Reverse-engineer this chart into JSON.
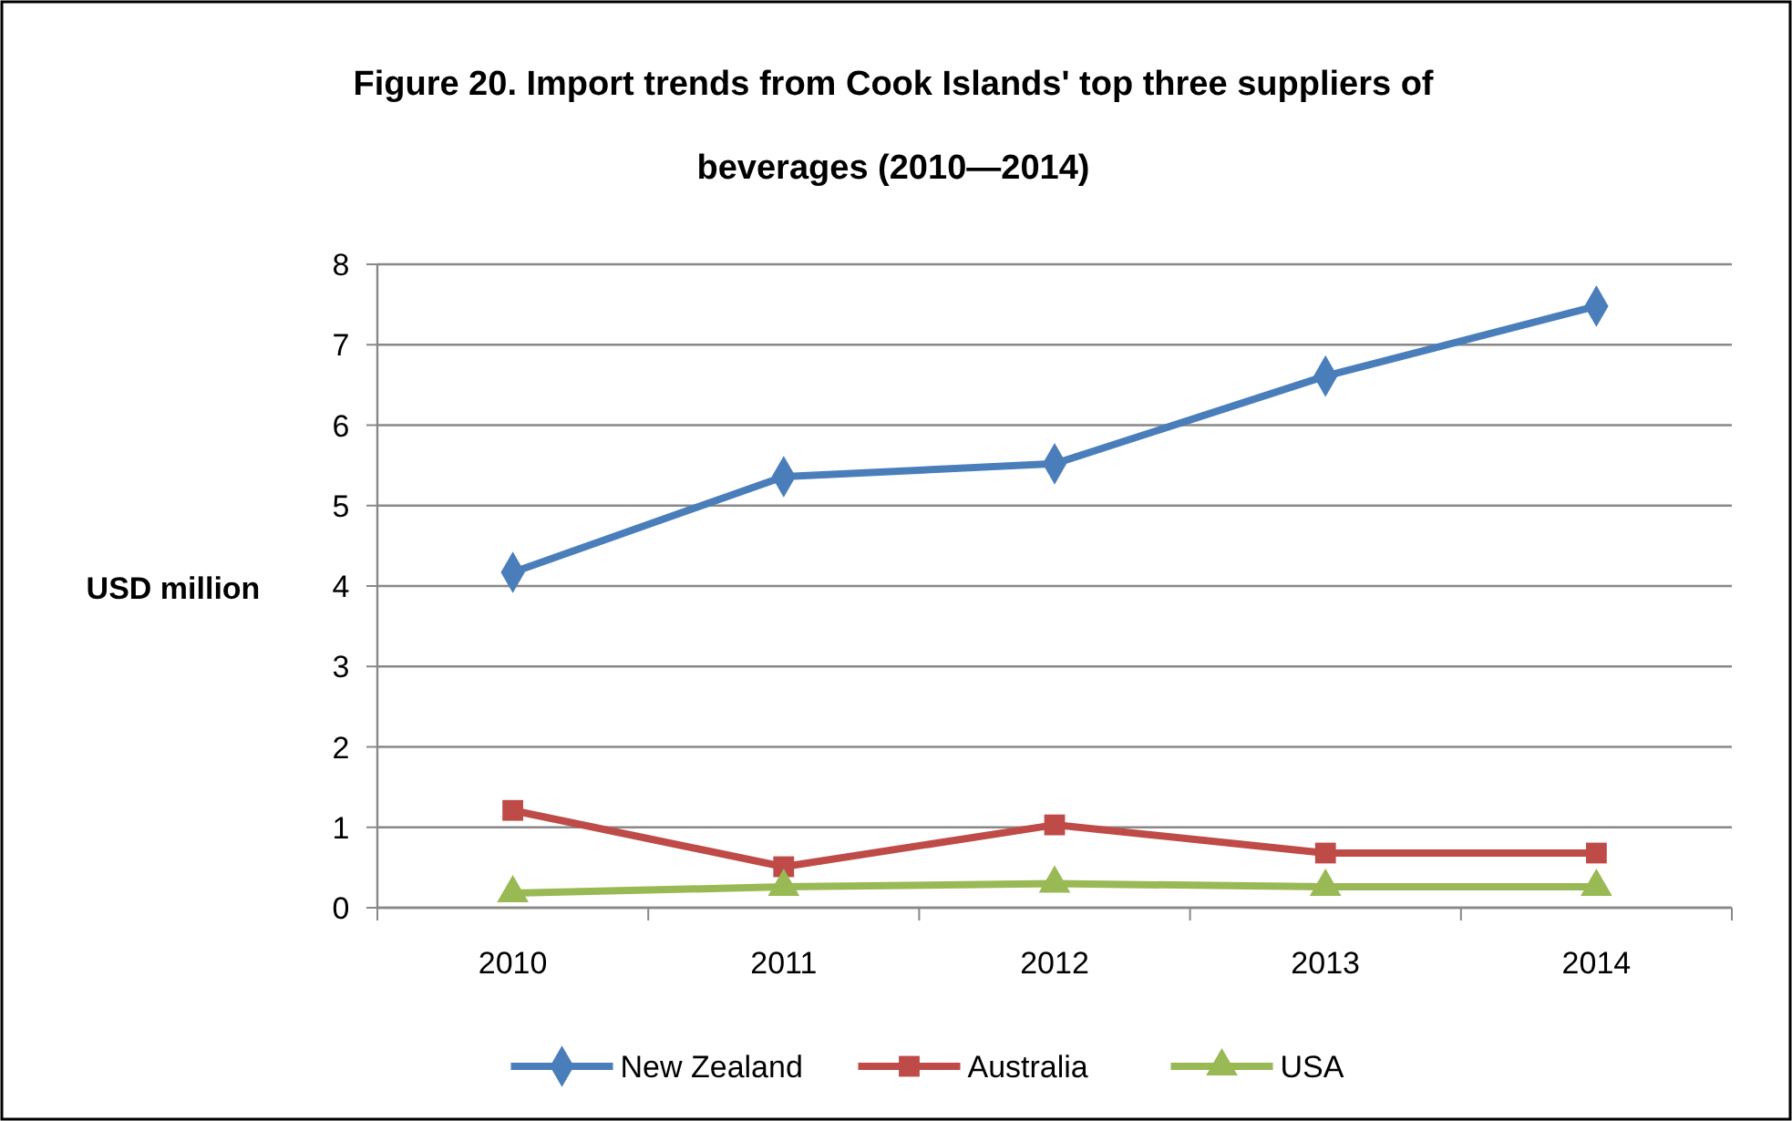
{
  "chart_data": {
    "type": "line",
    "title": "Figure 20. Import trends from Cook Islands' top three suppliers of beverages (2010—2014)",
    "ylabel": "USD million",
    "categories": [
      "2010",
      "2011",
      "2012",
      "2013",
      "2014"
    ],
    "ylim": [
      0,
      8
    ],
    "yticks": [
      0,
      1,
      2,
      3,
      4,
      5,
      6,
      7,
      8
    ],
    "grid": "y",
    "legend": "bottom",
    "series": [
      {
        "name": "New Zealand",
        "color": "#4a7ebb",
        "marker": "diamond",
        "values": [
          4.17,
          5.36,
          5.52,
          6.61,
          7.48
        ]
      },
      {
        "name": "Australia",
        "color": "#be4b48",
        "marker": "square",
        "values": [
          1.21,
          0.51,
          1.03,
          0.68,
          0.68
        ]
      },
      {
        "name": "USA",
        "color": "#98b954",
        "marker": "triangle",
        "values": [
          0.18,
          0.26,
          0.3,
          0.26,
          0.26
        ]
      }
    ]
  }
}
